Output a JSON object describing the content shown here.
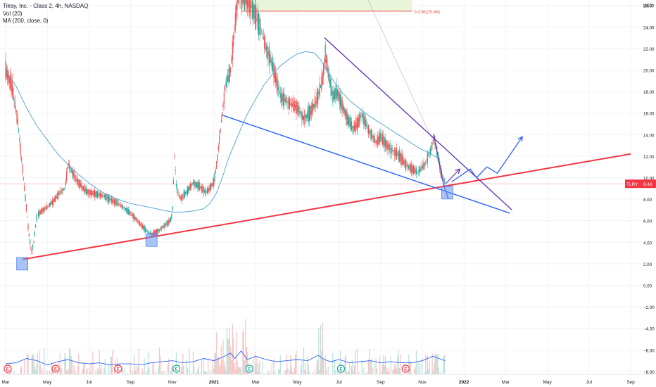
{
  "legend": {
    "title": "Tilray, Inc. - Class 2, 4h, NASDAQ",
    "vol": "Vol (20)",
    "ma": "MA (200, close, 0)"
  },
  "chart_data": {
    "type": "candlestick",
    "symbol": "TLRY",
    "currency": "USD",
    "last_price": 9.43,
    "last_price_label": "9.43",
    "y_axis": {
      "range": [
        -8.5,
        26.5
      ],
      "ticks": [
        "26.00",
        "24.00",
        "22.00",
        "20.00",
        "18.00",
        "16.00",
        "14.00",
        "12.00",
        "10.00",
        "8.00",
        "6.00",
        "4.00",
        "2.00",
        "0.00",
        "−2.00",
        "−4.00",
        "−6.00",
        "−8.00"
      ],
      "tick_values": [
        26,
        24,
        22,
        20,
        18,
        16,
        14,
        12,
        10,
        8,
        6,
        4,
        2,
        0,
        -2,
        -4,
        -6,
        -8
      ]
    },
    "x_axis": {
      "ticks": [
        "Mar",
        "May",
        "Jul",
        "Sep",
        "Nov",
        "2021",
        "Mar",
        "May",
        "Jul",
        "Sep",
        "Nov",
        "2022",
        "Mar",
        "May",
        "Jul",
        "Sep"
      ],
      "tick_months": [
        0,
        2,
        4,
        6,
        8,
        10,
        12,
        14,
        16,
        18,
        20,
        22,
        24,
        26,
        28,
        30
      ],
      "range_months": [
        0,
        30
      ]
    },
    "fib_label": "0.236(25.46)",
    "fib_level": 25.46,
    "price_path": [
      [
        0,
        20
      ],
      [
        0.3,
        18.5
      ],
      [
        0.6,
        15
      ],
      [
        0.8,
        11
      ],
      [
        1.0,
        7
      ],
      [
        1.1,
        5
      ],
      [
        1.25,
        3
      ],
      [
        1.35,
        4
      ],
      [
        1.5,
        6.5
      ],
      [
        1.8,
        7
      ],
      [
        2.0,
        7.3
      ],
      [
        2.3,
        7.8
      ],
      [
        2.6,
        8.6
      ],
      [
        2.85,
        9
      ],
      [
        3.0,
        11.3
      ],
      [
        3.2,
        10.5
      ],
      [
        3.5,
        9.5
      ],
      [
        3.9,
        8.7
      ],
      [
        4.3,
        8.5
      ],
      [
        4.7,
        8.3
      ],
      [
        5.0,
        8.0
      ],
      [
        5.4,
        7.6
      ],
      [
        5.8,
        7.0
      ],
      [
        6.1,
        6.5
      ],
      [
        6.5,
        5.6
      ],
      [
        6.8,
        5.0
      ],
      [
        7.0,
        4.7
      ],
      [
        7.3,
        5.0
      ],
      [
        7.6,
        5.5
      ],
      [
        7.9,
        6.0
      ],
      [
        8.0,
        6.6
      ],
      [
        8.1,
        12
      ],
      [
        8.2,
        9
      ],
      [
        8.4,
        8.0
      ],
      [
        8.7,
        8.7
      ],
      [
        9.0,
        9.5
      ],
      [
        9.3,
        9.2
      ],
      [
        9.6,
        8.6
      ],
      [
        9.8,
        9
      ],
      [
        10.0,
        9.6
      ],
      [
        10.15,
        11.5
      ],
      [
        10.35,
        15.2
      ],
      [
        10.55,
        18.5
      ],
      [
        10.8,
        20
      ],
      [
        11.0,
        24
      ],
      [
        11.15,
        26.8
      ],
      [
        11.3,
        27
      ],
      [
        11.6,
        26.5
      ],
      [
        11.9,
        25.5
      ],
      [
        12.1,
        24.5
      ],
      [
        12.3,
        23.5
      ],
      [
        12.5,
        22
      ],
      [
        12.8,
        20.5
      ],
      [
        13.0,
        19
      ],
      [
        13.2,
        17.5
      ],
      [
        13.4,
        17.2
      ],
      [
        13.7,
        16.8
      ],
      [
        14.0,
        16.5
      ],
      [
        14.3,
        15.5
      ],
      [
        14.6,
        16.0
      ],
      [
        14.9,
        17.0
      ],
      [
        15.2,
        19
      ],
      [
        15.35,
        21.6
      ],
      [
        15.5,
        19.5
      ],
      [
        15.7,
        17.5
      ],
      [
        15.9,
        18
      ],
      [
        16.1,
        17
      ],
      [
        16.4,
        15.5
      ],
      [
        16.7,
        14.5
      ],
      [
        16.9,
        15
      ],
      [
        17.1,
        15.9
      ],
      [
        17.4,
        14.5
      ],
      [
        17.8,
        13.2
      ],
      [
        18.0,
        13.8
      ],
      [
        18.3,
        13
      ],
      [
        18.6,
        12.5
      ],
      [
        18.9,
        12
      ],
      [
        19.2,
        11.2
      ],
      [
        19.5,
        10.8
      ],
      [
        19.8,
        10.5
      ],
      [
        20.1,
        11.2
      ],
      [
        20.4,
        12.5
      ],
      [
        20.55,
        13.8
      ],
      [
        20.7,
        12.5
      ],
      [
        20.9,
        10.5
      ],
      [
        21.1,
        9.43
      ]
    ],
    "ma_path": [
      [
        0,
        20
      ],
      [
        0.5,
        18.5
      ],
      [
        1.0,
        16.5
      ],
      [
        1.5,
        14.8
      ],
      [
        2.0,
        13.5
      ],
      [
        2.5,
        12.2
      ],
      [
        3.0,
        11.2
      ],
      [
        3.5,
        10.3
      ],
      [
        4.0,
        9.5
      ],
      [
        4.5,
        8.8
      ],
      [
        5.0,
        8.3
      ],
      [
        5.5,
        7.9
      ],
      [
        6.0,
        7.6
      ],
      [
        6.5,
        7.4
      ],
      [
        7.0,
        7.2
      ],
      [
        7.5,
        7.0
      ],
      [
        8.0,
        6.8
      ],
      [
        8.5,
        6.8
      ],
      [
        9.0,
        6.9
      ],
      [
        9.5,
        7.1
      ],
      [
        9.8,
        7.6
      ],
      [
        10.1,
        8.5
      ],
      [
        10.4,
        10
      ],
      [
        10.7,
        11.8
      ],
      [
        11.0,
        13.2
      ],
      [
        11.3,
        14.6
      ],
      [
        11.6,
        15.9
      ],
      [
        12.0,
        17.3
      ],
      [
        12.4,
        18.6
      ],
      [
        12.8,
        19.6
      ],
      [
        13.2,
        20.4
      ],
      [
        13.6,
        21.0
      ],
      [
        14.0,
        21.5
      ],
      [
        14.4,
        21.7
      ],
      [
        14.8,
        21.6
      ],
      [
        15.1,
        21.0
      ],
      [
        15.4,
        20.0
      ],
      [
        15.8,
        18.8
      ],
      [
        16.2,
        17.8
      ],
      [
        16.6,
        17.0
      ],
      [
        17.0,
        16.4
      ],
      [
        17.4,
        15.8
      ],
      [
        17.8,
        15.3
      ],
      [
        18.2,
        14.8
      ],
      [
        18.6,
        14.3
      ],
      [
        19.0,
        13.8
      ],
      [
        19.4,
        13.3
      ],
      [
        19.8,
        12.8
      ],
      [
        20.2,
        12.4
      ],
      [
        20.6,
        12.0
      ],
      [
        20.8,
        11.8
      ]
    ],
    "volume_path": [
      [
        0,
        -7.3
      ],
      [
        0.5,
        -7.2
      ],
      [
        1.0,
        -6.8
      ],
      [
        1.5,
        -7.0
      ],
      [
        2.0,
        -7.4
      ],
      [
        2.5,
        -7.1
      ],
      [
        3.0,
        -6.9
      ],
      [
        3.5,
        -7.2
      ],
      [
        4.0,
        -7.3
      ],
      [
        4.5,
        -7.2
      ],
      [
        5.0,
        -7.4
      ],
      [
        5.5,
        -7.3
      ],
      [
        6.0,
        -7.3
      ],
      [
        6.5,
        -7.4
      ],
      [
        7.0,
        -7.2
      ],
      [
        7.5,
        -7.1
      ],
      [
        8.0,
        -7.0
      ],
      [
        8.5,
        -7.2
      ],
      [
        9.0,
        -7.1
      ],
      [
        9.5,
        -6.8
      ],
      [
        10.0,
        -7.0
      ],
      [
        10.5,
        -6.6
      ],
      [
        10.8,
        -6.3
      ],
      [
        11.0,
        -6.8
      ],
      [
        11.3,
        -6.1
      ],
      [
        11.6,
        -6.9
      ],
      [
        12.0,
        -6.6
      ],
      [
        12.5,
        -6.9
      ],
      [
        13.0,
        -7.1
      ],
      [
        13.5,
        -7.0
      ],
      [
        14.0,
        -6.9
      ],
      [
        14.5,
        -7.0
      ],
      [
        15.0,
        -6.5
      ],
      [
        15.3,
        -6.9
      ],
      [
        15.6,
        -7.1
      ],
      [
        16.0,
        -6.9
      ],
      [
        16.5,
        -7.2
      ],
      [
        17.0,
        -7.1
      ],
      [
        17.5,
        -7.0
      ],
      [
        18.0,
        -7.2
      ],
      [
        18.5,
        -7.1
      ],
      [
        19.0,
        -7.2
      ],
      [
        19.5,
        -7.2
      ],
      [
        20.0,
        -7.0
      ],
      [
        20.5,
        -6.6
      ],
      [
        20.8,
        -6.8
      ],
      [
        21.1,
        -7.0
      ]
    ],
    "drawings": {
      "support_line": {
        "from": [
          0.8,
          2.4
        ],
        "to": [
          30,
          12.2
        ],
        "color": "#f23645"
      },
      "wedge_lower": {
        "from": [
          10.4,
          15.8
        ],
        "to": [
          24.2,
          6.7
        ],
        "color": "#2962ff"
      },
      "wedge_upper": {
        "from": [
          15.3,
          23.0
        ],
        "to": [
          24.3,
          7.0
        ],
        "color": "#673ab7"
      },
      "grey_trend": {
        "from": [
          17.4,
          26.5
        ],
        "to": [
          20.6,
          13.0
        ],
        "color": "#b2b5be"
      },
      "projection_small": [
        [
          20.55,
          14.0
        ],
        [
          21.0,
          9.5
        ],
        [
          21.25,
          8.0
        ]
      ],
      "projection_red_up": [
        [
          21.1,
          9.4
        ],
        [
          21.8,
          10.8
        ]
      ],
      "projection_blue": [
        [
          21.4,
          9.6
        ],
        [
          22.3,
          10.8
        ],
        [
          22.6,
          10.0
        ],
        [
          23.1,
          11.0
        ],
        [
          23.6,
          10.4
        ],
        [
          24.8,
          13.8
        ]
      ],
      "highlight_boxes": [
        {
          "month": 0.8,
          "price": 2.0
        },
        {
          "month": 7.0,
          "price": 4.2
        },
        {
          "month": 21.2,
          "price": 8.6
        }
      ],
      "fib_zone": {
        "from_month": 11.3,
        "to_month": 19.5,
        "top": 26.5,
        "bottom": 25.46,
        "color": "#e8f5d9"
      }
    },
    "earnings_markers": [
      {
        "month": 0.1,
        "label": "E",
        "color": "#f23645"
      },
      {
        "month": 2.4,
        "label": "E",
        "color": "#f23645"
      },
      {
        "month": 5.4,
        "label": "E",
        "color": "#f23645"
      },
      {
        "month": 8.2,
        "label": "E",
        "color": "#26a69a"
      },
      {
        "month": 11.7,
        "label": "E",
        "color": "#26a69a"
      },
      {
        "month": 16.1,
        "label": "E",
        "color": "#26a69a"
      },
      {
        "month": 19.2,
        "label": "E",
        "color": "#f23645"
      }
    ],
    "colors": {
      "up": "#26a69a",
      "down": "#ef5350",
      "ma": "#5aa9d6",
      "volume_line": "#2962ff",
      "price_line": "#f23645"
    }
  }
}
